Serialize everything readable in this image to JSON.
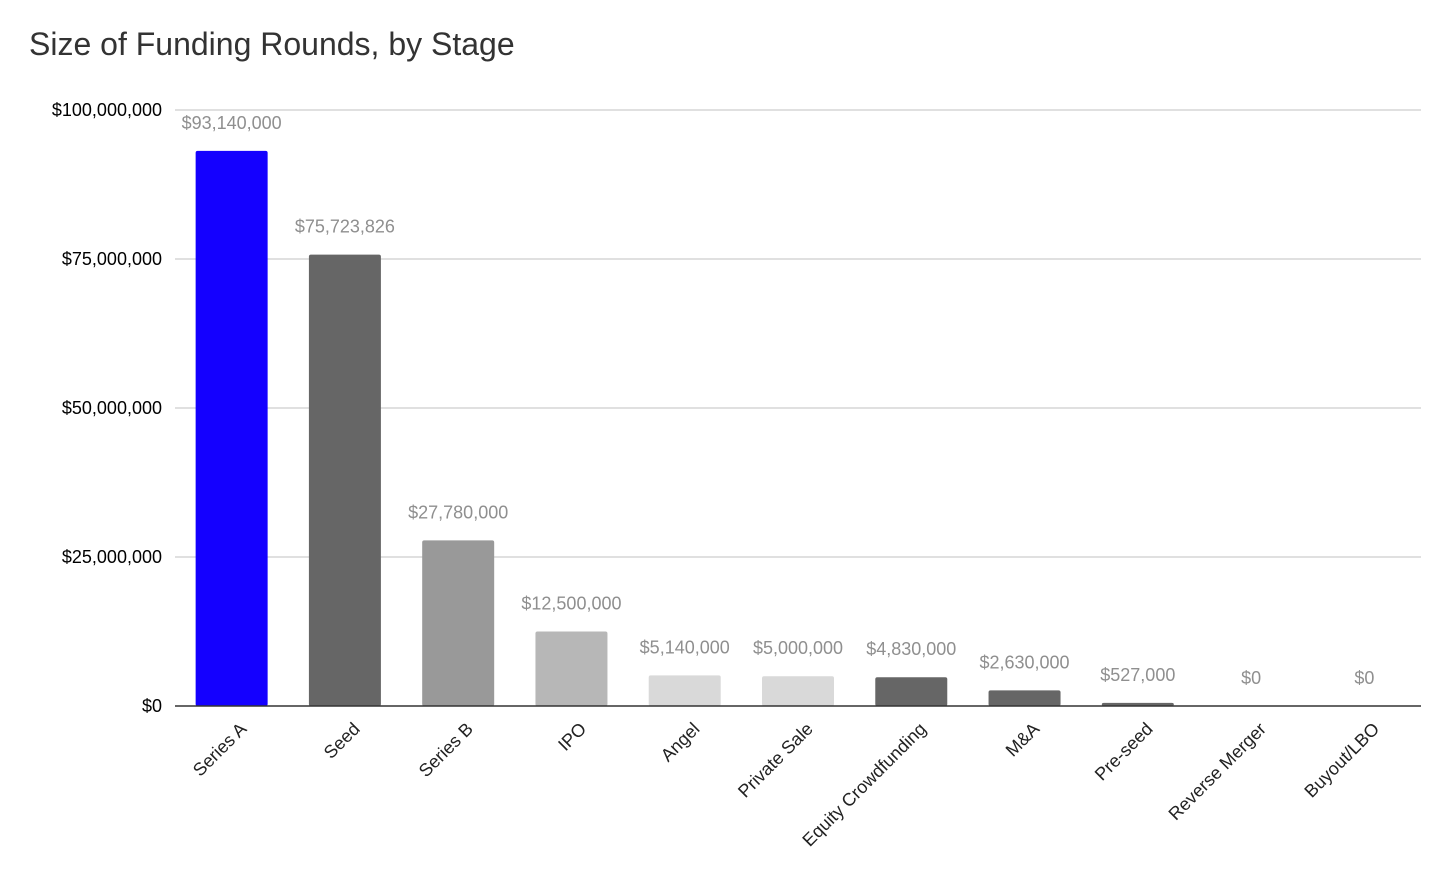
{
  "chart_data": {
    "type": "bar",
    "title": "Size of Funding Rounds, by Stage",
    "xlabel": "",
    "ylabel": "",
    "ylim": [
      0,
      100000000
    ],
    "yticks": [
      0,
      25000000,
      50000000,
      75000000,
      100000000
    ],
    "ytick_labels": [
      "$0",
      "$25,000,000",
      "$50,000,000",
      "$75,000,000",
      "$100,000,000"
    ],
    "grid": true,
    "legend": "none",
    "categories": [
      "Series A",
      "Seed",
      "Series B",
      "IPO",
      "Angel",
      "Private Sale",
      "Equity Crowdfunding",
      "M&A",
      "Pre-seed",
      "Reverse Merger",
      "Buyout/LBO"
    ],
    "values": [
      93140000,
      75723826,
      27780000,
      12500000,
      5140000,
      5000000,
      4830000,
      2630000,
      527000,
      0,
      0
    ],
    "data_labels": [
      "$93,140,000",
      "$75,723,826",
      "$27,780,000",
      "$12,500,000",
      "$5,140,000",
      "$5,000,000",
      "$4,830,000",
      "$2,630,000",
      "$527,000",
      "$0",
      "$0"
    ],
    "colors": [
      "#1400ff",
      "#666666",
      "#999999",
      "#b7b7b7",
      "#d9d9d9",
      "#d9d9d9",
      "#666666",
      "#666666",
      "#666666",
      "#666666",
      "#666666"
    ]
  }
}
